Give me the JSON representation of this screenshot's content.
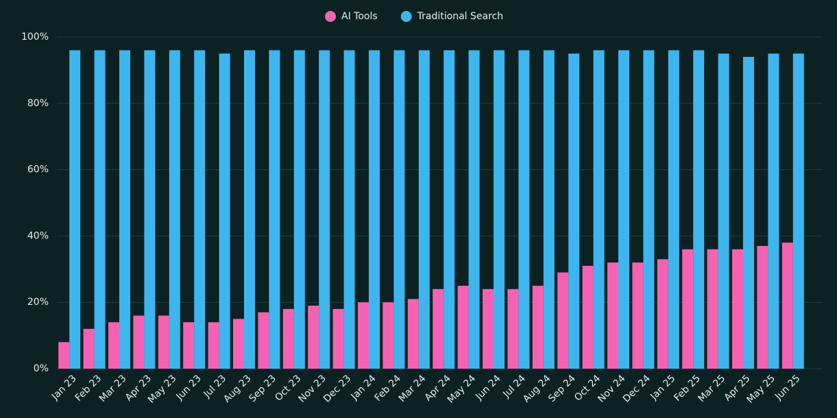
{
  "chart_data": {
    "type": "bar",
    "categories": [
      "Jan 23",
      "Feb 23",
      "Mar 23",
      "Apr 23",
      "May 23",
      "Jun 23",
      "Jul 23",
      "Aug 23",
      "Sep 23",
      "Oct 23",
      "Nov 23",
      "Dec 23",
      "Jan 24",
      "Feb 24",
      "Mar 24",
      "Apr 24",
      "May 24",
      "Jun 24",
      "Jul 24",
      "Aug 24",
      "Sep 24",
      "Oct 24",
      "Nov 24",
      "Dec 24",
      "Jan 25",
      "Feb 25",
      "Mar 25",
      "Apr 25",
      "May 25",
      "Jun 25"
    ],
    "series": [
      {
        "name": "AI Tools",
        "color": "#f562b4",
        "values": [
          8,
          12,
          14,
          16,
          16,
          14,
          14,
          15,
          17,
          18,
          19,
          18,
          20,
          20,
          21,
          24,
          25,
          24,
          24,
          25,
          29,
          31,
          32,
          32,
          33,
          36,
          36,
          36,
          37,
          38
        ]
      },
      {
        "name": "Traditional Search",
        "color": "#3db6ef",
        "values": [
          96,
          96,
          96,
          96,
          96,
          96,
          95,
          96,
          96,
          96,
          96,
          96,
          96,
          96,
          96,
          96,
          96,
          96,
          96,
          96,
          95,
          96,
          96,
          96,
          96,
          96,
          95,
          94,
          95,
          95
        ]
      }
    ],
    "ylim": [
      0,
      100
    ],
    "yticks": [
      {
        "value": 0,
        "label": "0%"
      },
      {
        "value": 20,
        "label": "20%"
      },
      {
        "value": 40,
        "label": "40%"
      },
      {
        "value": 60,
        "label": "60%"
      },
      {
        "value": 80,
        "label": "80%"
      },
      {
        "value": 100,
        "label": "100%"
      }
    ],
    "grid": true,
    "legend": "top"
  }
}
